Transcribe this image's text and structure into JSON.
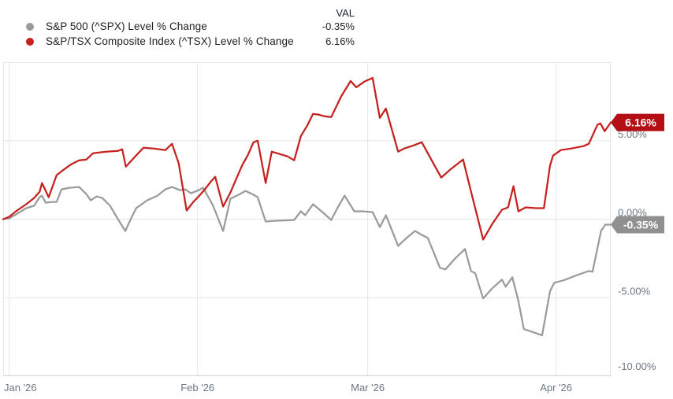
{
  "legend": {
    "val_header": "VAL",
    "rows": [
      {
        "label": "S&P 500 (^SPX) Level % Change",
        "value": "-0.35%"
      },
      {
        "label": "S&P/TSX Composite Index (^TSX) Level % Change",
        "value": "6.16%"
      }
    ]
  },
  "chart_data": {
    "type": "line",
    "title": "",
    "xlabel": "",
    "ylabel": "",
    "x_unit": "days since 2025-12-31",
    "xlim": [
      0,
      100
    ],
    "ylim": [
      -10,
      10
    ],
    "grid": true,
    "x_ticks": [
      {
        "label": "Jan '26",
        "day": 1
      },
      {
        "label": "Feb '26",
        "day": 32
      },
      {
        "label": "Mar '26",
        "day": 60
      },
      {
        "label": "Apr '26",
        "day": 91
      }
    ],
    "y_ticks": [
      {
        "label": "5.00%",
        "value": 5
      },
      {
        "label": "0.00%",
        "value": 0
      },
      {
        "label": "-5.00%",
        "value": -5
      },
      {
        "label": "-10.00%",
        "value": -10
      }
    ],
    "colors": {
      "grid": "#e4e6e7",
      "axis_border": "#ced3d6",
      "tick_text": "#6d7781"
    },
    "series": [
      {
        "id": "spx",
        "name": "S&P 500 (^SPX) Level % Change",
        "color": "#9b9b9b",
        "badge_color": "#909090",
        "final_label": "-0.35%",
        "points": [
          [
            0,
            0
          ],
          [
            1,
            0.05
          ],
          [
            2.1,
            0.3
          ],
          [
            3.8,
            0.7
          ],
          [
            5.1,
            0.85
          ],
          [
            6,
            1.4
          ],
          [
            6.4,
            1.5
          ],
          [
            7,
            1.05
          ],
          [
            8,
            1.1
          ],
          [
            8.8,
            1.1
          ],
          [
            9.6,
            1.9
          ],
          [
            10.9,
            2.0
          ],
          [
            12.5,
            2.05
          ],
          [
            13.7,
            1.6
          ],
          [
            14.4,
            1.2
          ],
          [
            15.4,
            1.45
          ],
          [
            16.3,
            1.35
          ],
          [
            17.6,
            0.85
          ],
          [
            18.9,
            0.0
          ],
          [
            20.1,
            -0.75
          ],
          [
            21,
            0.0
          ],
          [
            21.9,
            0.7
          ],
          [
            23.7,
            1.2
          ],
          [
            25.4,
            1.5
          ],
          [
            26.7,
            1.9
          ],
          [
            27.8,
            2.05
          ],
          [
            29.1,
            1.85
          ],
          [
            30,
            1.9
          ],
          [
            30.9,
            1.65
          ],
          [
            31.9,
            1.8
          ],
          [
            32.9,
            2.0
          ],
          [
            34.5,
            0.9
          ],
          [
            36.2,
            -0.75
          ],
          [
            37.4,
            1.3
          ],
          [
            38.7,
            1.55
          ],
          [
            39.9,
            1.8
          ],
          [
            41,
            1.6
          ],
          [
            41.9,
            1.4
          ],
          [
            43.2,
            -0.15
          ],
          [
            44.9,
            -0.1
          ],
          [
            46.4,
            -0.08
          ],
          [
            47.9,
            -0.05
          ],
          [
            49,
            0.5
          ],
          [
            49.7,
            0.25
          ],
          [
            51,
            0.95
          ],
          [
            52.4,
            0.5
          ],
          [
            54,
            -0.05
          ],
          [
            55,
            0.7
          ],
          [
            56.2,
            1.5
          ],
          [
            57.8,
            0.5
          ],
          [
            59.1,
            0.5
          ],
          [
            60.8,
            0.45
          ],
          [
            62,
            -0.5
          ],
          [
            63,
            0.25
          ],
          [
            65,
            -1.7
          ],
          [
            66.4,
            -1.2
          ],
          [
            67.8,
            -0.75
          ],
          [
            68.9,
            -1.0
          ],
          [
            69.9,
            -1.2
          ],
          [
            71.9,
            -3.1
          ],
          [
            72.8,
            -3.2
          ],
          [
            74.4,
            -2.5
          ],
          [
            76,
            -1.9
          ],
          [
            77,
            -3.3
          ],
          [
            77.7,
            -3.45
          ],
          [
            79,
            -5.05
          ],
          [
            80.5,
            -4.4
          ],
          [
            82.1,
            -3.85
          ],
          [
            82.7,
            -4.3
          ],
          [
            83.8,
            -3.7
          ],
          [
            84.8,
            -5.2
          ],
          [
            85.7,
            -7.0
          ],
          [
            87.2,
            -7.2
          ],
          [
            88.7,
            -7.4
          ],
          [
            90,
            -4.6
          ],
          [
            90.7,
            -4.05
          ],
          [
            92.2,
            -3.9
          ],
          [
            94.2,
            -3.6
          ],
          [
            96.4,
            -3.3
          ],
          [
            97,
            -3.35
          ],
          [
            98.4,
            -0.75
          ],
          [
            99.1,
            -0.35
          ],
          [
            100,
            -0.35
          ]
        ]
      },
      {
        "id": "tsx",
        "name": "S&P/TSX Composite Index (^TSX) Level % Change",
        "color": "#c5211f",
        "badge_color": "#b30f15",
        "final_label": "6.16%",
        "points": [
          [
            0,
            0
          ],
          [
            1,
            0.15
          ],
          [
            2.1,
            0.5
          ],
          [
            3.8,
            0.95
          ],
          [
            5.1,
            1.35
          ],
          [
            6,
            1.75
          ],
          [
            6.4,
            2.3
          ],
          [
            7.5,
            1.4
          ],
          [
            8.8,
            2.8
          ],
          [
            9.6,
            3.05
          ],
          [
            11.2,
            3.5
          ],
          [
            12.5,
            3.75
          ],
          [
            13.7,
            3.8
          ],
          [
            14.8,
            4.2
          ],
          [
            17,
            4.3
          ],
          [
            18.9,
            4.35
          ],
          [
            19.6,
            4.45
          ],
          [
            20.2,
            3.35
          ],
          [
            21.5,
            3.9
          ],
          [
            23.1,
            4.55
          ],
          [
            24.8,
            4.5
          ],
          [
            26.7,
            4.4
          ],
          [
            27.8,
            4.8
          ],
          [
            28.9,
            3.55
          ],
          [
            30.2,
            0.55
          ],
          [
            31.3,
            1.1
          ],
          [
            32.3,
            1.5
          ],
          [
            33.2,
            1.9
          ],
          [
            34.2,
            2.4
          ],
          [
            34.9,
            2.7
          ],
          [
            36.2,
            0.8
          ],
          [
            37.4,
            1.7
          ],
          [
            38.4,
            2.6
          ],
          [
            39.3,
            3.4
          ],
          [
            40.3,
            4.1
          ],
          [
            41.2,
            4.9
          ],
          [
            41.9,
            5.0
          ],
          [
            43.2,
            2.3
          ],
          [
            44.2,
            4.3
          ],
          [
            45.5,
            4.15
          ],
          [
            46.8,
            4.0
          ],
          [
            47.9,
            3.75
          ],
          [
            49,
            5.3
          ],
          [
            50.1,
            6.0
          ],
          [
            51,
            6.7
          ],
          [
            52,
            6.65
          ],
          [
            52.9,
            6.55
          ],
          [
            54,
            6.5
          ],
          [
            55.6,
            7.8
          ],
          [
            57.2,
            8.8
          ],
          [
            58.1,
            8.4
          ],
          [
            59.4,
            8.75
          ],
          [
            60.8,
            9.0
          ],
          [
            62,
            6.45
          ],
          [
            63,
            7.05
          ],
          [
            65,
            4.3
          ],
          [
            66,
            4.5
          ],
          [
            67.6,
            4.7
          ],
          [
            68.9,
            4.9
          ],
          [
            70.6,
            3.7
          ],
          [
            72.1,
            2.65
          ],
          [
            73.7,
            3.2
          ],
          [
            75.7,
            3.8
          ],
          [
            77.3,
            1.3
          ],
          [
            79,
            -1.3
          ],
          [
            80.5,
            -0.3
          ],
          [
            82.1,
            0.6
          ],
          [
            83.1,
            0.75
          ],
          [
            84,
            2.1
          ],
          [
            84.8,
            0.5
          ],
          [
            86,
            0.75
          ],
          [
            87.7,
            0.7
          ],
          [
            89,
            0.7
          ],
          [
            90,
            3.4
          ],
          [
            90.5,
            4.05
          ],
          [
            91.8,
            4.4
          ],
          [
            93.5,
            4.5
          ],
          [
            95.5,
            4.65
          ],
          [
            96.4,
            4.8
          ],
          [
            97.8,
            6.0
          ],
          [
            98.3,
            6.1
          ],
          [
            99,
            5.6
          ],
          [
            100,
            6.16
          ]
        ]
      }
    ]
  }
}
